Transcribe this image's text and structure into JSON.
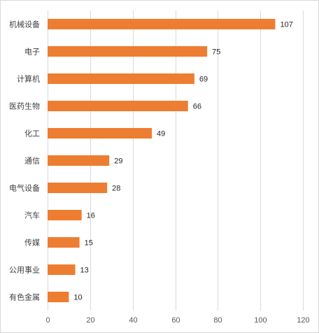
{
  "chart_data": {
    "type": "bar",
    "orientation": "horizontal",
    "categories": [
      "机械设备",
      "电子",
      "计算机",
      "医药生物",
      "化工",
      "通信",
      "电气设备",
      "汽车",
      "传媒",
      "公用事业",
      "有色金属"
    ],
    "values": [
      107,
      75,
      69,
      66,
      49,
      29,
      28,
      16,
      15,
      13,
      10
    ],
    "xlim": [
      0,
      120
    ],
    "xticks": [
      0,
      20,
      40,
      60,
      80,
      100,
      120
    ],
    "grid": true,
    "legend": "none",
    "bar_color": "#ED7D31",
    "title": "",
    "xlabel": "",
    "ylabel": ""
  }
}
